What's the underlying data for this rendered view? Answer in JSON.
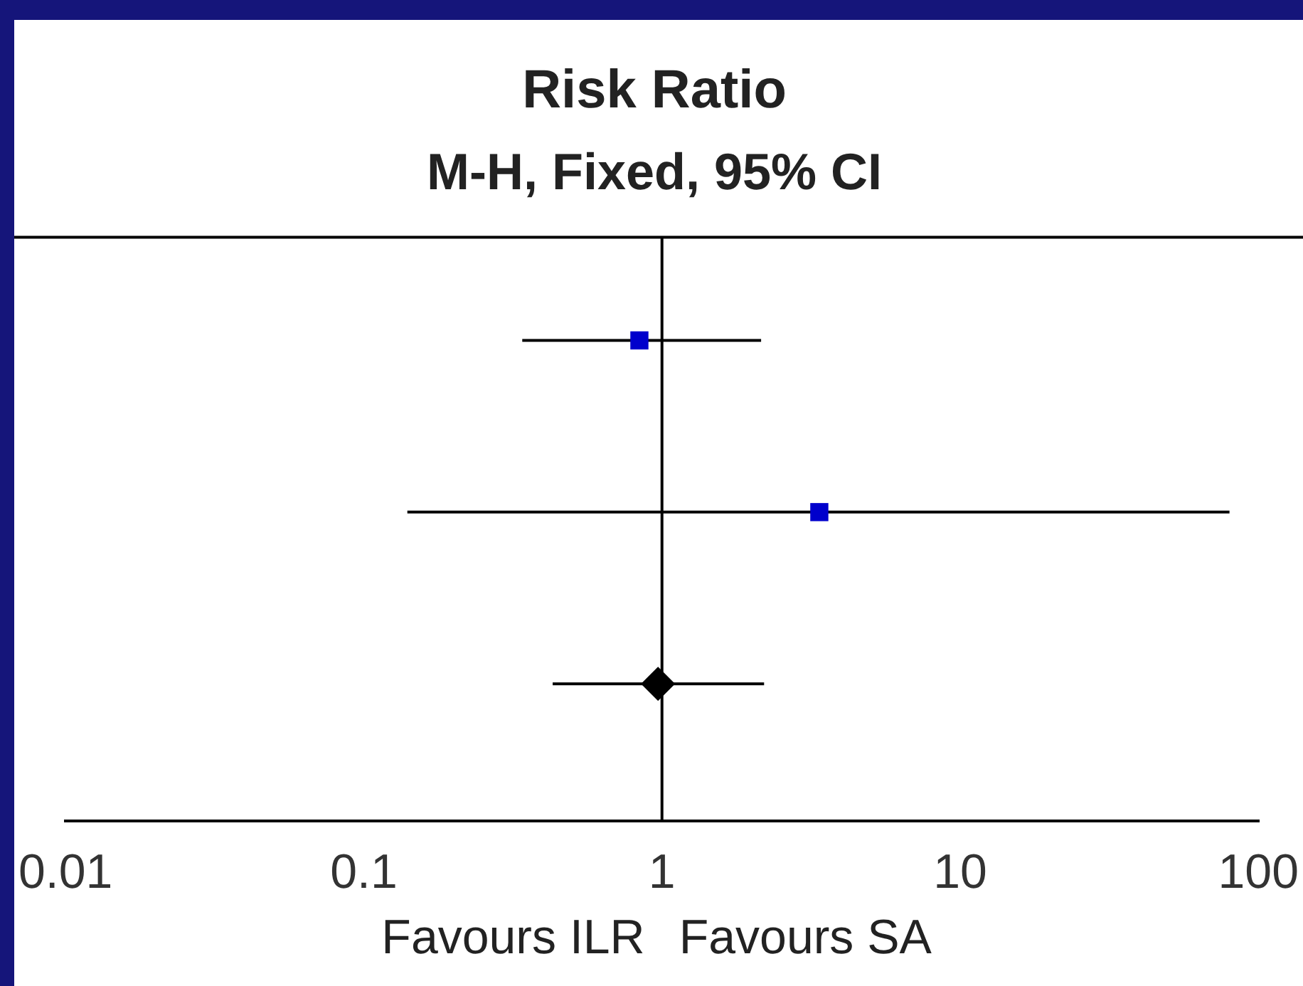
{
  "chart_data": {
    "type": "scatter",
    "title": "Risk Ratio",
    "subtitle": "M-H, Fixed, 95% CI",
    "orientation": "horizontal",
    "categories": [
      null,
      null,
      null
    ],
    "series": [
      {
        "color": "#0000cc",
        "marker": "square",
        "values": [
          0.84,
          3.37,
          null
        ],
        "errors": [
          [
            0.34,
            2.15
          ],
          [
            0.14,
            80
          ],
          null
        ]
      },
      {
        "color": "#000000",
        "marker": "diamond",
        "values": [
          null,
          null,
          0.97
        ],
        "errors": [
          null,
          null,
          [
            0.43,
            2.2
          ]
        ]
      }
    ],
    "log": "x",
    "xlim": [
      0.01,
      100
    ],
    "xticks": [
      0.01,
      0.1,
      1,
      10,
      100
    ],
    "ref_lines": [
      {
        "axis": "x",
        "value": 1,
        "color": "#000000"
      }
    ],
    "annotations": [
      "Favours ILR",
      "Favours SA"
    ],
    "grid": false,
    "legend": false,
    "tick_labels": "x"
  }
}
